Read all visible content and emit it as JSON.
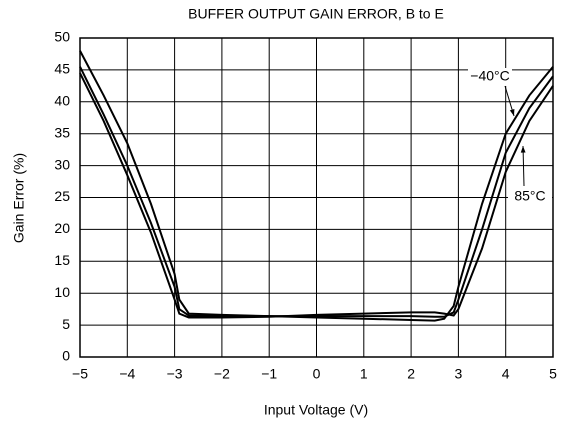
{
  "chart_data": {
    "type": "line",
    "title": "BUFFER OUTPUT GAIN ERROR, B to E",
    "xlabel": "Input Voltage (V)",
    "ylabel": "Gain Error (%)",
    "x": [
      -5,
      -4.5,
      -4,
      -3.5,
      -3,
      -2.9,
      -2.7,
      -2,
      -1,
      0,
      1,
      2,
      2.5,
      2.7,
      2.9,
      3,
      3.5,
      4,
      4.5,
      5
    ],
    "series": [
      {
        "color": "#000000",
        "values": [
          48,
          41,
          33.5,
          24,
          13,
          9,
          6.8,
          6.6,
          6.4,
          6.2,
          6.0,
          5.8,
          5.7,
          6.0,
          8,
          11,
          24,
          35,
          41,
          45.5
        ]
      },
      {
        "color": "#000000",
        "values": [
          45.5,
          38,
          30,
          21,
          11,
          7.5,
          6.5,
          6.4,
          6.4,
          6.4,
          6.4,
          6.4,
          6.3,
          6.3,
          7,
          9,
          20,
          32,
          39,
          44
        ]
      },
      {
        "color": "#000000",
        "values": [
          44.5,
          37,
          28.5,
          19.5,
          9,
          6.8,
          6.2,
          6.2,
          6.3,
          6.6,
          6.8,
          7,
          7,
          6.8,
          6.5,
          7.5,
          17,
          29,
          37,
          42.5
        ]
      }
    ],
    "annotations": [
      "−40°C",
      "85°C"
    ],
    "xlim": [
      -5,
      5
    ],
    "xticks": [
      {
        "value": -5,
        "label": "−5"
      },
      {
        "value": -4,
        "label": "−4"
      },
      {
        "value": -3,
        "label": "−3"
      },
      {
        "value": -2,
        "label": "−2"
      },
      {
        "value": -1,
        "label": "−1"
      },
      0,
      1,
      2,
      3,
      4,
      5
    ],
    "ylim": [
      0,
      50
    ],
    "yticks": [
      0,
      5,
      10,
      15,
      20,
      25,
      30,
      35,
      40,
      45,
      50
    ],
    "grid": true
  }
}
